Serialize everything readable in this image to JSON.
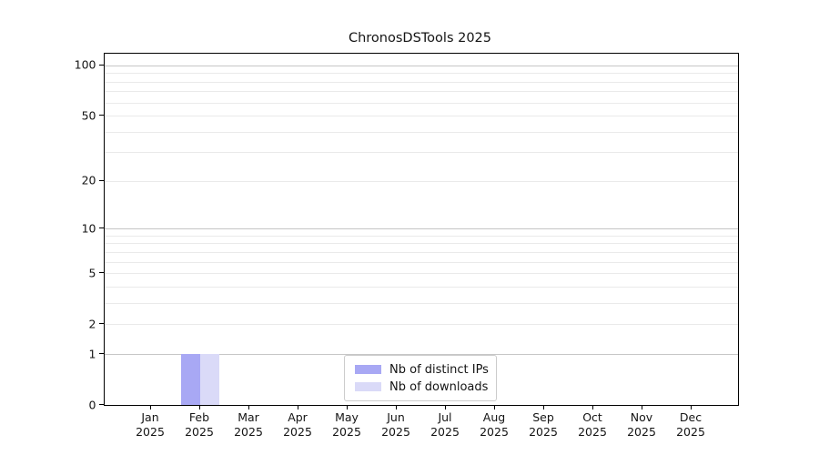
{
  "title": "ChronosDSTools 2025",
  "colors": {
    "bar_distinct_ips": "#a8a8f4",
    "bar_downloads": "#dadaf8",
    "grid_major": "#c6c6c6",
    "grid_minor": "#eaeaea",
    "axis": "#000000",
    "text": "#141414",
    "legend_border": "#cccccc"
  },
  "legend": {
    "items": [
      {
        "label": "Nb of distinct IPs",
        "color_key": "bar_distinct_ips"
      },
      {
        "label": "Nb of downloads",
        "color_key": "bar_downloads"
      }
    ]
  },
  "chart_data": {
    "type": "bar",
    "title": "ChronosDSTools 2025",
    "categories": [
      "Jan 2025",
      "Feb 2025",
      "Mar 2025",
      "Apr 2025",
      "May 2025",
      "Jun 2025",
      "Jul 2025",
      "Aug 2025",
      "Sep 2025",
      "Oct 2025",
      "Nov 2025",
      "Dec 2025"
    ],
    "series": [
      {
        "name": "Nb of distinct IPs",
        "color_key": "bar_distinct_ips",
        "values": [
          0,
          1,
          0,
          0,
          0,
          0,
          0,
          0,
          0,
          0,
          0,
          0
        ]
      },
      {
        "name": "Nb of downloads",
        "color_key": "bar_downloads",
        "values": [
          0,
          1,
          0,
          0,
          0,
          0,
          0,
          0,
          0,
          0,
          0,
          0
        ]
      }
    ],
    "xlabel": "",
    "ylabel": "",
    "y_scale": "log1p",
    "y_ticks": [
      0,
      1,
      2,
      5,
      10,
      20,
      50,
      100
    ],
    "y_major_gridlines": [
      1,
      10,
      100
    ],
    "y_minor_gridlines": [
      2,
      3,
      4,
      5,
      6,
      7,
      8,
      9,
      20,
      30,
      40,
      50,
      60,
      70,
      80,
      90
    ],
    "ylim": [
      0,
      117
    ],
    "grid": true,
    "legend_position": "lower center"
  }
}
